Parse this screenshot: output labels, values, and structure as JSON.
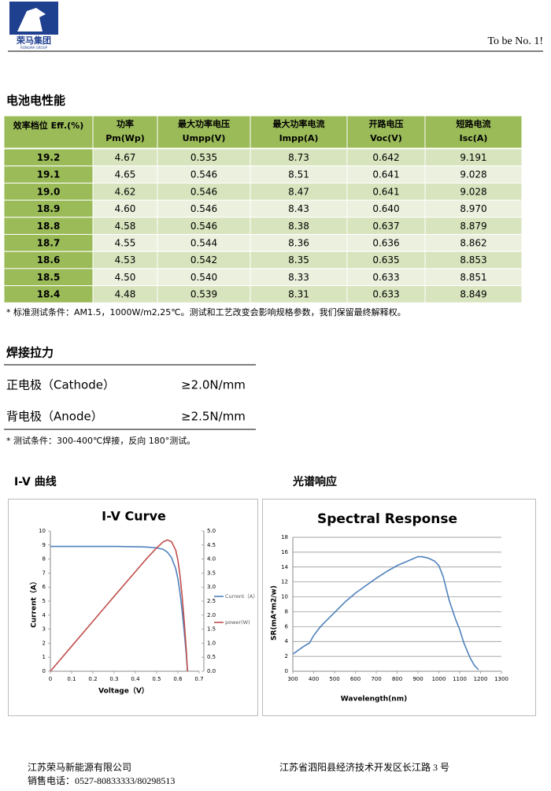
{
  "header": {
    "logo": "荣马集团",
    "logo_sub": "RONGMA GROUP",
    "slogan": "To be No. 1!"
  },
  "sections": {
    "electrical": "电池电性能",
    "solder": "焊接拉力",
    "iv": "I-V 曲线",
    "spectral": "光谱响应"
  },
  "table": {
    "header": [
      [
        "效率档位 Eff.(%)"
      ],
      [
        "功率",
        "Pm(Wp)"
      ],
      [
        "最大功率电压",
        "Umpp(V)"
      ],
      [
        "最大功率电流",
        "Impp(A)"
      ],
      [
        "开路电压",
        "Voc(V)"
      ],
      [
        "短路电流",
        "Isc(A)"
      ]
    ],
    "rows": [
      [
        "19.2",
        "4.67",
        "0.535",
        "8.73",
        "0.642",
        "9.191"
      ],
      [
        "19.1",
        "4.65",
        "0.546",
        "8.51",
        "0.641",
        "9.028"
      ],
      [
        "19.0",
        "4.62",
        "0.546",
        "8.47",
        "0.641",
        "9.028"
      ],
      [
        "18.9",
        "4.60",
        "0.546",
        "8.43",
        "0.640",
        "8.970"
      ],
      [
        "18.8",
        "4.58",
        "0.546",
        "8.38",
        "0.637",
        "8.879"
      ],
      [
        "18.7",
        "4.55",
        "0.544",
        "8.36",
        "0.636",
        "8.862"
      ],
      [
        "18.6",
        "4.53",
        "0.542",
        "8.35",
        "0.635",
        "8.853"
      ],
      [
        "18.5",
        "4.50",
        "0.540",
        "8.33",
        "0.633",
        "8.851"
      ],
      [
        "18.4",
        "4.48",
        "0.539",
        "8.31",
        "0.633",
        "8.849"
      ]
    ]
  },
  "table_note": "* 标准测试条件：AM1.5，1000W/m2,25℃。测试和工艺改变会影响规格参数，我们保留最终解释权。",
  "solder": {
    "rows": [
      [
        "正电极（Cathode）",
        "≥2.0N/mm"
      ],
      [
        "背电极（Anode）",
        "≥2.5N/mm"
      ]
    ],
    "note": "* 测试条件：300-400℃焊接，反向 180°测试。"
  },
  "footer": {
    "company": "江苏荣马新能源有限公司",
    "address": "江苏省泗阳县经济技术开发区长江路 3 号",
    "phone": "销售电话：0527-80833333/80298513"
  },
  "chart_data": [
    {
      "type": "line",
      "title": "I-V Curve",
      "x_label": "Voltage（V）",
      "y_label": "Current（A）",
      "grid": false,
      "legend": "right",
      "xlim": [
        0,
        0.7
      ],
      "xticks": [
        0,
        0.1,
        0.2,
        0.3,
        0.4,
        0.5,
        0.6,
        0.7
      ],
      "ylim": [
        0,
        10
      ],
      "yticks": [
        0,
        1,
        2,
        3,
        4,
        5,
        6,
        7,
        8,
        9,
        10
      ],
      "y2lim": [
        0,
        5
      ],
      "y2ticks": [
        {
          "value": 0,
          "label": "0.0"
        },
        0.5,
        {
          "value": 1,
          "label": "1.0"
        },
        1.5,
        {
          "value": 2,
          "label": "2.0"
        },
        2.5,
        {
          "value": 3,
          "label": "3.0"
        },
        3.5,
        {
          "value": 4,
          "label": "4.0"
        },
        4.5,
        {
          "value": 5,
          "label": "5.0"
        }
      ],
      "series": [
        {
          "name": "Current（A）",
          "color": "#4f81bd",
          "x": [
            0,
            0.1,
            0.2,
            0.3,
            0.4,
            0.45,
            0.5,
            0.53,
            0.55,
            0.57,
            0.59,
            0.6,
            0.61,
            0.62,
            0.63,
            0.64,
            0.645
          ],
          "values": [
            8.9,
            8.9,
            8.9,
            8.9,
            8.88,
            8.86,
            8.8,
            8.7,
            8.5,
            8.1,
            7.3,
            6.6,
            5.6,
            4.3,
            2.8,
            1.1,
            0
          ]
        },
        {
          "name": "power(W)",
          "color": "#c0504d",
          "axis": "y2",
          "x": [
            0,
            0.1,
            0.2,
            0.3,
            0.4,
            0.45,
            0.5,
            0.53,
            0.55,
            0.57,
            0.59,
            0.6,
            0.61,
            0.62,
            0.63,
            0.64,
            0.645
          ],
          "values": [
            0,
            0.89,
            1.78,
            2.67,
            3.55,
            3.99,
            4.4,
            4.61,
            4.68,
            4.62,
            4.31,
            3.96,
            3.42,
            2.67,
            1.76,
            0.7,
            0
          ]
        }
      ]
    },
    {
      "type": "line",
      "title": "Spectral Response",
      "x_label": "Wavelength(nm)",
      "y_label": "SR(mA*m2/w)",
      "grid": true,
      "xlim": [
        300,
        1300
      ],
      "xticks": [
        300,
        400,
        500,
        600,
        700,
        800,
        900,
        1000,
        1100,
        1200,
        1300
      ],
      "ylim": [
        0,
        18
      ],
      "yticks": [
        0,
        2,
        4,
        6,
        8,
        10,
        12,
        14,
        16,
        18
      ],
      "series": [
        {
          "color": "#4f81bd",
          "x": [
            300,
            350,
            380,
            400,
            430,
            450,
            500,
            550,
            600,
            650,
            700,
            750,
            800,
            850,
            900,
            920,
            950,
            980,
            1000,
            1020,
            1050,
            1080,
            1100,
            1120,
            1150,
            1170,
            1190
          ],
          "values": [
            2.3,
            3.3,
            3.8,
            4.8,
            5.9,
            6.5,
            7.9,
            9.3,
            10.5,
            11.5,
            12.5,
            13.4,
            14.2,
            14.8,
            15.4,
            15.4,
            15.2,
            14.8,
            14.2,
            12.8,
            9.5,
            7.0,
            5.6,
            3.8,
            1.8,
            0.8,
            0.2
          ]
        }
      ]
    }
  ]
}
